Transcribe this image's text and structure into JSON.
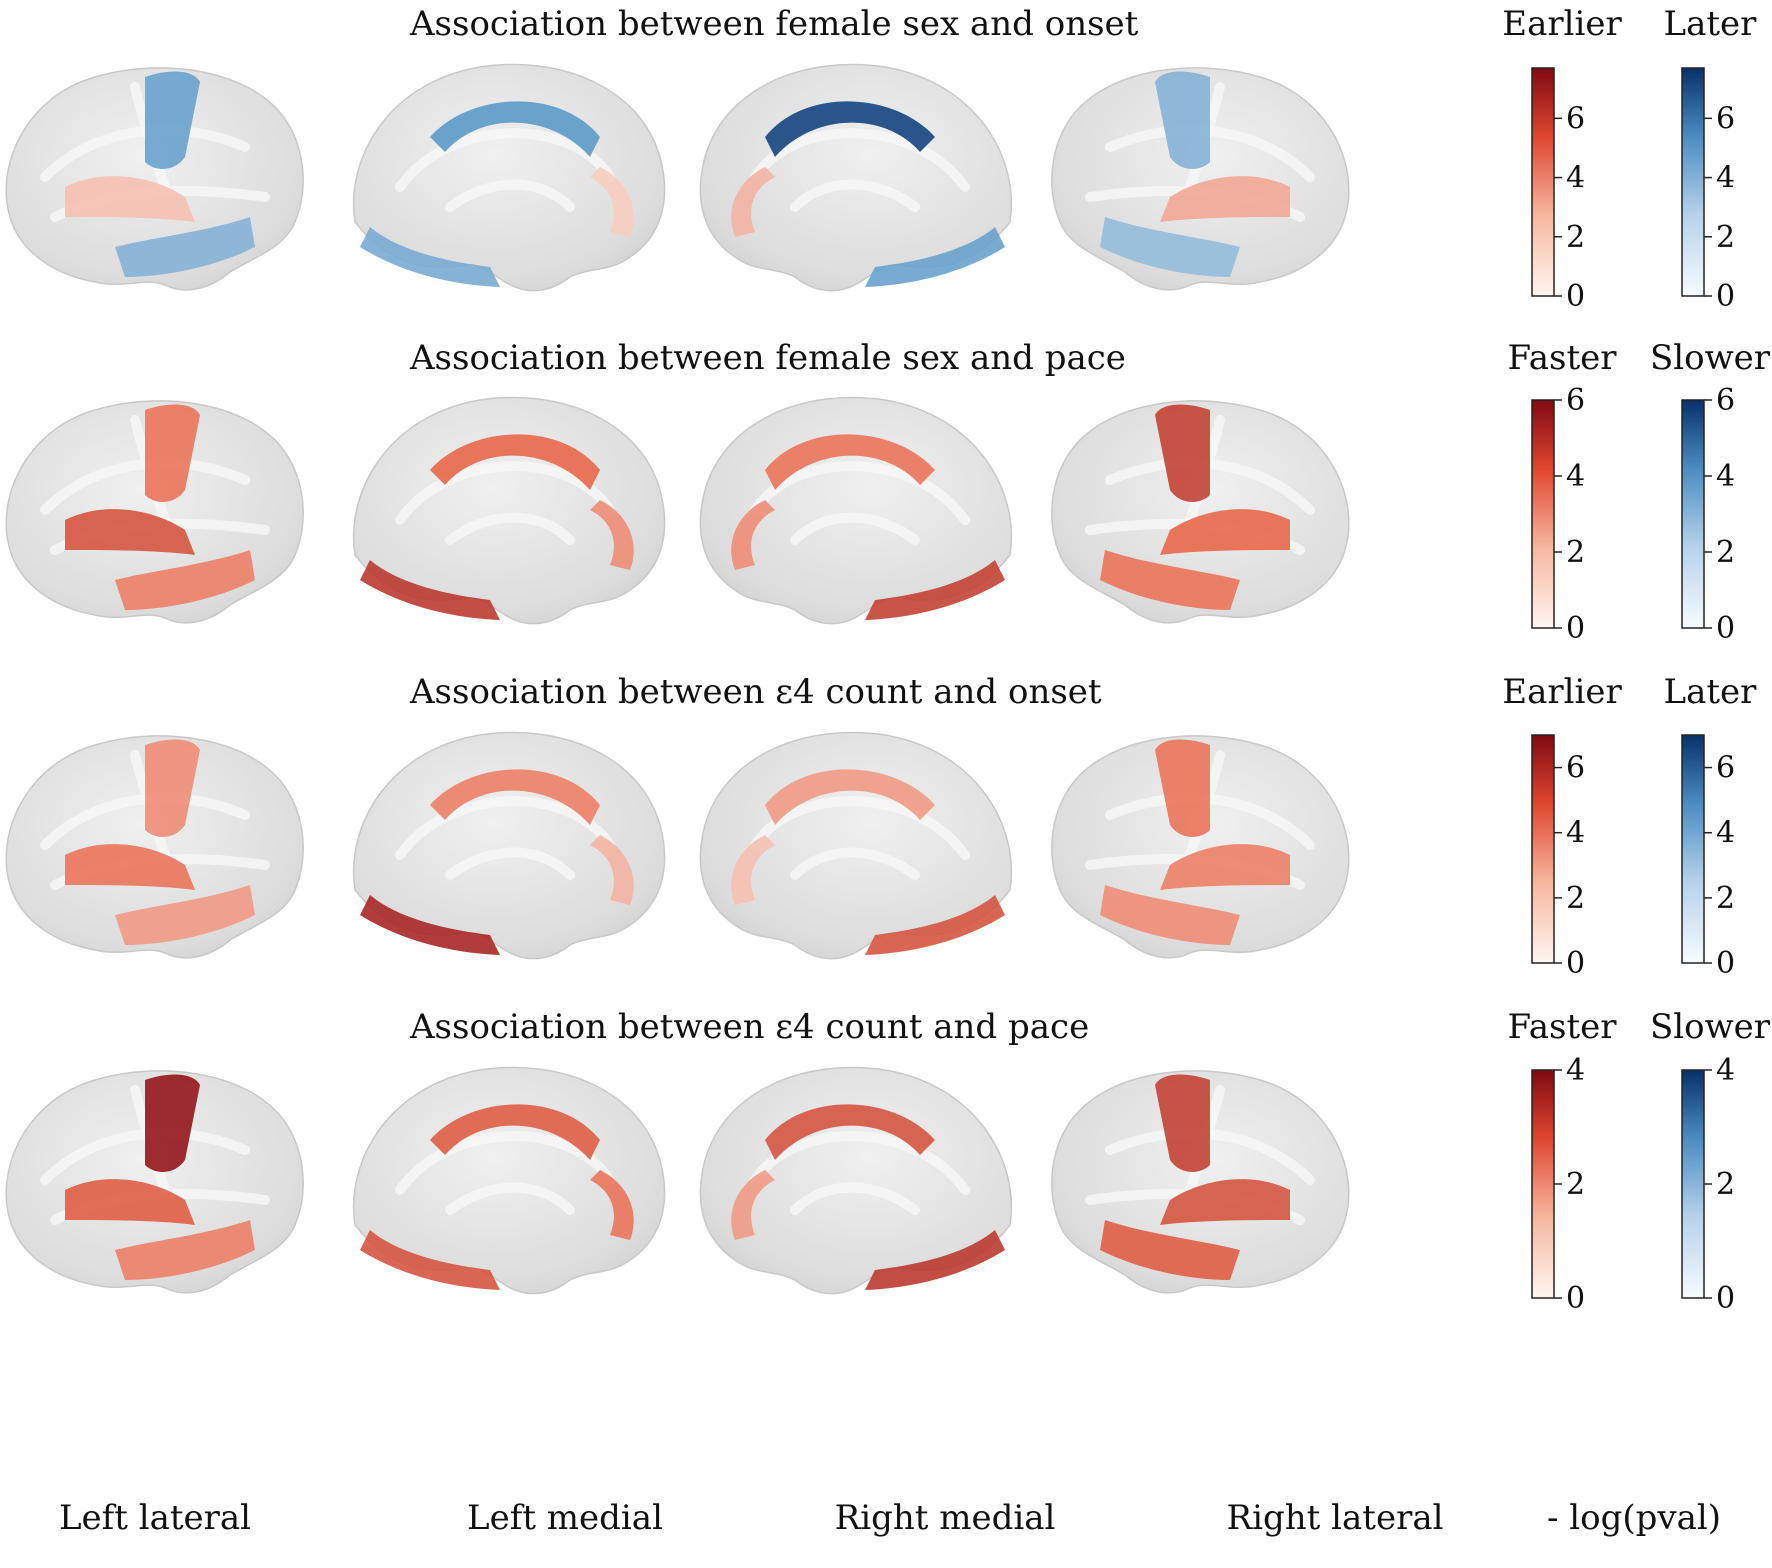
{
  "rows": [
    {
      "title": "Association between female sex and onset",
      "neg_label": "Earlier",
      "pos_label": "Later",
      "scale_max": 7.7,
      "ticks": [
        "0",
        "2",
        "4",
        "6"
      ]
    },
    {
      "title": "Association between female sex and pace",
      "neg_label": "Faster",
      "pos_label": "Slower",
      "scale_max": 6,
      "ticks": [
        "0",
        "2",
        "4",
        "6"
      ]
    },
    {
      "title": "Association between ε4 count and onset",
      "neg_label": "Earlier",
      "pos_label": "Later",
      "scale_max": 7,
      "ticks": [
        "0",
        "2",
        "4",
        "6"
      ]
    },
    {
      "title": "Association between ε4 count and pace",
      "neg_label": "Faster",
      "pos_label": "Slower",
      "scale_max": 4,
      "ticks": [
        "0",
        "2",
        "4"
      ]
    }
  ],
  "views": [
    "Left lateral",
    "Left medial",
    "Right medial",
    "Right lateral"
  ],
  "colorbar_label": "- log(pval)",
  "colors": {
    "red_low": "#fbe6dc",
    "red_mid": "#e8674a",
    "red_high": "#8b0d16",
    "blue_low": "#e6eef6",
    "blue_mid": "#5b9ac8",
    "blue_high": "#0d3b78",
    "cortex": "#e3e3e3"
  },
  "overlay_levels": [
    [
      [
        [
          "blue",
          0.45
        ],
        [
          "red",
          0.15
        ],
        [
          "blue",
          0.35
        ]
      ],
      [
        [
          "blue",
          0.5
        ],
        [
          "blue",
          0.4
        ],
        [
          "red",
          0.1
        ]
      ],
      [
        [
          "blue",
          0.95
        ],
        [
          "blue",
          0.45
        ],
        [
          "red",
          0.2
        ]
      ],
      [
        [
          "blue",
          0.35
        ],
        [
          "red",
          0.25
        ],
        [
          "blue",
          0.3
        ]
      ]
    ],
    [
      [
        [
          "red",
          0.45
        ],
        [
          "red",
          0.6
        ],
        [
          "red",
          0.4
        ]
      ],
      [
        [
          "red",
          0.5
        ],
        [
          "red",
          0.75
        ],
        [
          "red",
          0.35
        ]
      ],
      [
        [
          "red",
          0.45
        ],
        [
          "red",
          0.7
        ],
        [
          "red",
          0.35
        ]
      ],
      [
        [
          "red",
          0.7
        ],
        [
          "red",
          0.5
        ],
        [
          "red",
          0.45
        ]
      ]
    ],
    [
      [
        [
          "red",
          0.35
        ],
        [
          "red",
          0.45
        ],
        [
          "red",
          0.3
        ]
      ],
      [
        [
          "red",
          0.4
        ],
        [
          "red",
          0.85
        ],
        [
          "red",
          0.2
        ]
      ],
      [
        [
          "red",
          0.3
        ],
        [
          "red",
          0.6
        ],
        [
          "red",
          0.15
        ]
      ],
      [
        [
          "red",
          0.45
        ],
        [
          "red",
          0.4
        ],
        [
          "red",
          0.35
        ]
      ]
    ],
    [
      [
        [
          "red",
          0.95
        ],
        [
          "red",
          0.55
        ],
        [
          "red",
          0.4
        ]
      ],
      [
        [
          "red",
          0.55
        ],
        [
          "red",
          0.6
        ],
        [
          "red",
          0.45
        ]
      ],
      [
        [
          "red",
          0.6
        ],
        [
          "red",
          0.75
        ],
        [
          "red",
          0.3
        ]
      ],
      [
        [
          "red",
          0.7
        ],
        [
          "red",
          0.6
        ],
        [
          "red",
          0.55
        ]
      ]
    ]
  ]
}
